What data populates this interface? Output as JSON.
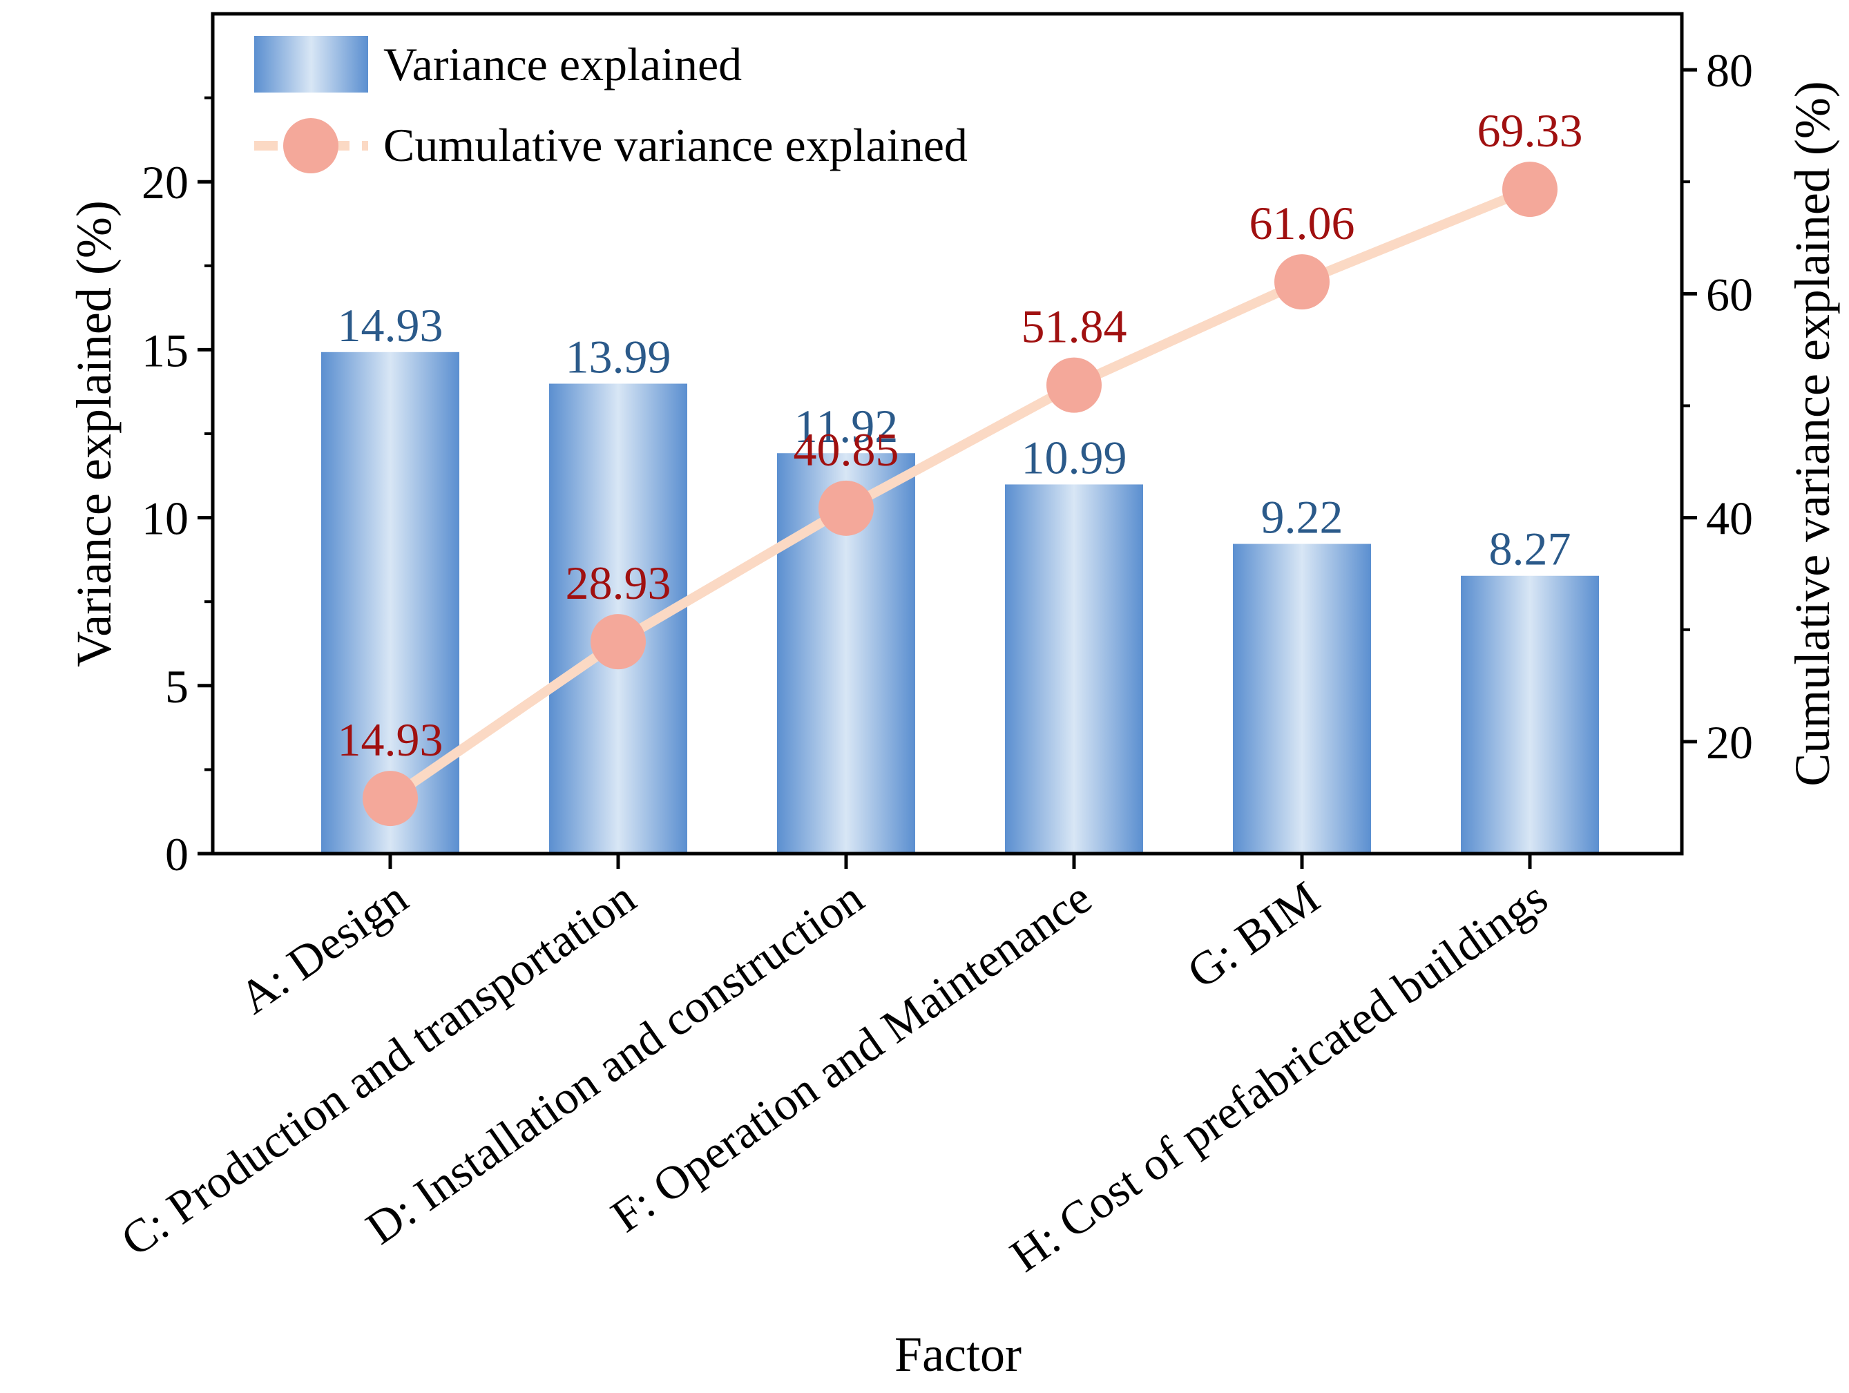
{
  "chart_data": {
    "type": "bar+line",
    "categories": [
      "A: Design",
      "C: Production and transportation",
      "D: Installation and construction",
      "F: Operation and Maintenance",
      "G: BIM",
      "H: Cost of prefabricated buildings"
    ],
    "series": [
      {
        "name": "Variance explained",
        "type": "bar",
        "axis": "left",
        "values": [
          14.93,
          13.99,
          11.92,
          10.99,
          9.22,
          8.27
        ],
        "labels": [
          "14.93",
          "13.99",
          "11.92",
          "10.99",
          "9.22",
          "8.27"
        ]
      },
      {
        "name": "Cumulative variance explained",
        "type": "line",
        "axis": "right",
        "values": [
          14.93,
          28.93,
          40.85,
          51.84,
          61.06,
          69.33
        ],
        "labels": [
          "14.93",
          "28.93",
          "40.85",
          "51.84",
          "61.06",
          "69.33"
        ]
      }
    ],
    "xlabel": "Factor",
    "ylabel": "Variance explained (%)",
    "y2label": "Cumulative variance explained (%)",
    "ylim": [
      0,
      25
    ],
    "y2lim": [
      10,
      85
    ],
    "yticks": [
      0,
      5,
      10,
      15,
      20
    ],
    "y2ticks": [
      20,
      40,
      60,
      80
    ],
    "legend": "top-left",
    "grid": false,
    "colors": {
      "bar_edge": "#5b8fd0",
      "bar_center": "#d8e6f5",
      "line": "#fbd9c4",
      "marker": "#f4a89a",
      "bar_label": "#2b5a8a",
      "line_label": "#a01010"
    }
  }
}
